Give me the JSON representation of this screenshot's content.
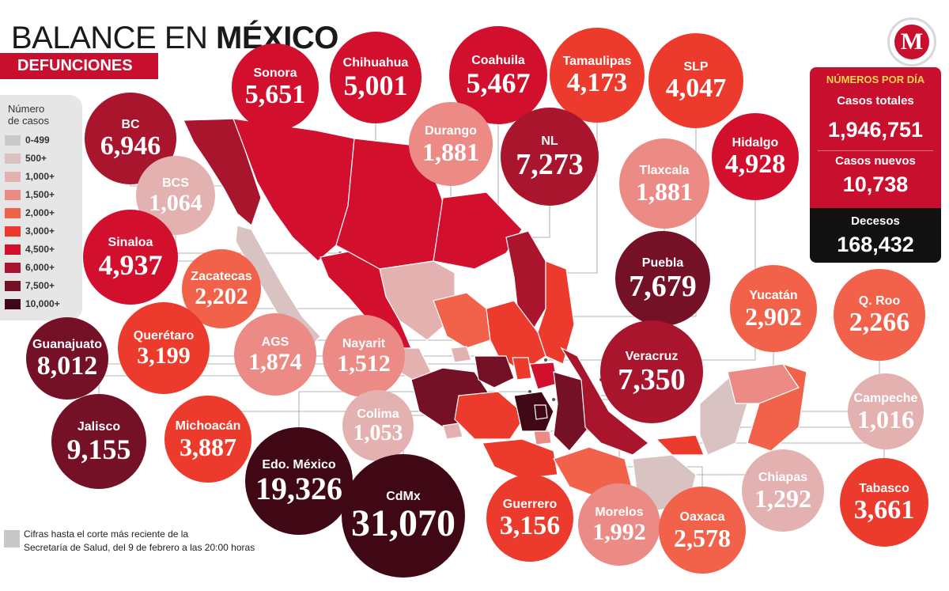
{
  "header": {
    "title_light": "BALANCE EN ",
    "title_bold": "MÉXICO",
    "subtitle": "DEFUNCIONES",
    "logo_letter": "M"
  },
  "legend": {
    "title_line1": "Número",
    "title_line2": "de casos",
    "items": [
      {
        "label": "0-499",
        "color": "#c9c9c9"
      },
      {
        "label": "500+",
        "color": "#d8c2c2"
      },
      {
        "label": "1,000+",
        "color": "#e4b1b1"
      },
      {
        "label": "1,500+",
        "color": "#ec8b86"
      },
      {
        "label": "2,000+",
        "color": "#f26149"
      },
      {
        "label": "3,000+",
        "color": "#ec3b2c"
      },
      {
        "label": "4,500+",
        "color": "#d2102e"
      },
      {
        "label": "6,000+",
        "color": "#a8152d"
      },
      {
        "label": "7,500+",
        "color": "#741127"
      },
      {
        "label": "10,000+",
        "color": "#3f0814"
      }
    ]
  },
  "panel": {
    "header": "NÚMEROS POR DÍA",
    "total_label": "Casos totales",
    "total_value": "1,946,751",
    "new_label": "Casos nuevos",
    "new_value": "10,738",
    "deaths_label": "Decesos",
    "deaths_value": "168,432"
  },
  "footnote": {
    "line1": "Cifras hasta el corte más reciente de la",
    "line2": "Secretaría de Salud, del 9 de febrero a las 20:00 horas"
  },
  "chart_data": {
    "type": "bubble-map",
    "title": "BALANCE EN MÉXICO",
    "subtitle": "DEFUNCIONES",
    "legend_title": "Número de casos",
    "categories": [
      "BC",
      "BCS",
      "Sonora",
      "Chihuahua",
      "Coahuila",
      "Tamaulipas",
      "SLP",
      "Durango",
      "NL",
      "Tlaxcala",
      "Hidalgo",
      "Sinaloa",
      "Zacatecas",
      "Puebla",
      "Yucatán",
      "Q. Roo",
      "Guanajuato",
      "Querétaro",
      "AGS",
      "Nayarit",
      "Veracruz",
      "Campeche",
      "Jalisco",
      "Michoacán",
      "Colima",
      "Edo. México",
      "CdMx",
      "Guerrero",
      "Morelos",
      "Oaxaca",
      "Chiapas",
      "Tabasco"
    ],
    "values": [
      6946,
      1064,
      5651,
      5001,
      5467,
      4173,
      4047,
      1881,
      7273,
      1881,
      4928,
      4937,
      2202,
      7679,
      2902,
      2266,
      8012,
      3199,
      1874,
      1512,
      7350,
      1016,
      9155,
      3887,
      1053,
      19326,
      31070,
      3156,
      1992,
      2578,
      1292,
      3661
    ],
    "labels": [
      "6,946",
      "1,064",
      "5,651",
      "5,001",
      "5,467",
      "4,173",
      "4,047",
      "1,881",
      "7,273",
      "1,881",
      "4,928",
      "4,937",
      "2,202",
      "7,679",
      "2,902",
      "2,266",
      "8,012",
      "3,199",
      "1,874",
      "1,512",
      "7,350",
      "1,016",
      "9,155",
      "3,887",
      "1,053",
      "19,326",
      "31,070",
      "3,156",
      "1,992",
      "2,578",
      "1,292",
      "3,661"
    ]
  }
}
